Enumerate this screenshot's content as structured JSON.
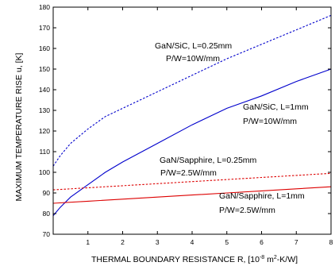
{
  "chart_data": {
    "type": "line",
    "xlabel": "THERMAL BOUNDARY RESISTANCE R, [10",
    "xlabel_exp1": "-8",
    "xlabel_mid": " m",
    "xlabel_exp2": "2",
    "xlabel_end": "-K/W]",
    "ylabel": "MAXIMUM TEMPERATURE RISE u, [K]",
    "xlim": [
      0,
      8
    ],
    "ylim": [
      70,
      180
    ],
    "xticks": [
      "1",
      "2",
      "3",
      "4",
      "5",
      "6",
      "7",
      "8"
    ],
    "yticks": [
      "70",
      "80",
      "90",
      "100",
      "110",
      "120",
      "130",
      "140",
      "150",
      "160",
      "170",
      "180"
    ],
    "grid": false,
    "series": [
      {
        "label_line1": "GaN/SiC, L=0.25mm",
        "label_line2": "P/W=10W/mm",
        "color": "#0000cc",
        "style": "dashed",
        "x": [
          0,
          0.2,
          0.5,
          1,
          1.5,
          2,
          3,
          4,
          5,
          6,
          7,
          8
        ],
        "y": [
          103,
          108,
          114,
          121,
          127,
          131,
          139,
          147,
          155,
          162,
          169,
          176
        ]
      },
      {
        "label_line1": "GaN/SiC, L=1mm",
        "label_line2": "P/W=10W/mm",
        "color": "#0000cc",
        "style": "solid",
        "x": [
          0,
          0.2,
          0.5,
          1,
          1.5,
          2,
          3,
          4,
          5,
          6,
          7,
          8
        ],
        "y": [
          79,
          83,
          88,
          94,
          100,
          105,
          114,
          123,
          131,
          137,
          144,
          150
        ]
      },
      {
        "label_line1": "GaN/Sapphire, L=0.25mm",
        "label_line2": "P/W=2.5W/mm",
        "color": "#dd0000",
        "style": "dashed",
        "x": [
          0,
          1,
          2,
          3,
          4,
          5,
          6,
          7,
          8
        ],
        "y": [
          91.5,
          92.5,
          93.5,
          94.5,
          95.5,
          96.5,
          97.5,
          98.5,
          99.5
        ]
      },
      {
        "label_line1": "GaN/Sapphire, L=1mm",
        "label_line2": "P/W=2.5W/mm",
        "color": "#dd0000",
        "style": "solid",
        "x": [
          0,
          1,
          2,
          3,
          4,
          5,
          6,
          7,
          8
        ],
        "y": [
          85,
          86,
          87,
          88,
          89,
          90,
          91,
          92,
          93
        ]
      }
    ]
  }
}
